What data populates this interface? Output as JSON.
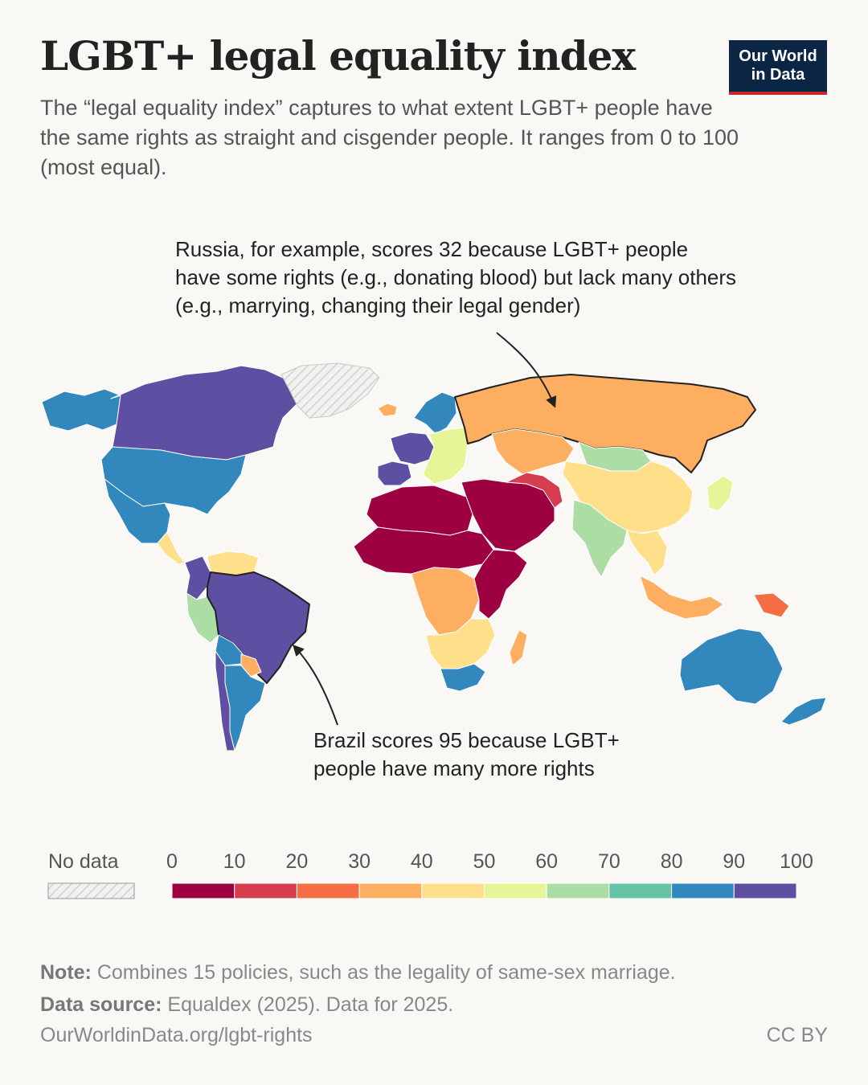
{
  "title": "LGBT+ legal equality index",
  "subtitle": "The “legal equality index” captures to what extent LGBT+ people have the same rights as straight and cisgender people. It ranges from 0 to 100 (most equal).",
  "logo": {
    "line1": "Our World",
    "line2": "in Data"
  },
  "annotations": {
    "russia": "Russia, for example, scores 32 because LGBT+ people have some rights (e.g., donating blood) but lack many others (e.g., marrying, changing their legal gender)",
    "brazil": "Brazil scores 95 because LGBT+ people have many more rights"
  },
  "legend": {
    "no_data_label": "No data",
    "ticks": [
      "0",
      "10",
      "20",
      "30",
      "40",
      "50",
      "60",
      "70",
      "80",
      "90",
      "100"
    ],
    "bins": [
      {
        "from": 0,
        "to": 10,
        "color": "#9e0142"
      },
      {
        "from": 10,
        "to": 20,
        "color": "#d53e4f"
      },
      {
        "from": 20,
        "to": 30,
        "color": "#f46d43"
      },
      {
        "from": 30,
        "to": 40,
        "color": "#fdae61"
      },
      {
        "from": 40,
        "to": 50,
        "color": "#fee08b"
      },
      {
        "from": 50,
        "to": 60,
        "color": "#e6f598"
      },
      {
        "from": 60,
        "to": 70,
        "color": "#abdda4"
      },
      {
        "from": 70,
        "to": 80,
        "color": "#66c2a5"
      },
      {
        "from": 80,
        "to": 90,
        "color": "#3288bd"
      },
      {
        "from": 90,
        "to": 100,
        "color": "#5e4fa2"
      }
    ]
  },
  "regions": [
    {
      "name": "Alaska",
      "value": 85
    },
    {
      "name": "Canada",
      "value": 95
    },
    {
      "name": "United States",
      "value": 85
    },
    {
      "name": "Mexico",
      "value": 85
    },
    {
      "name": "Central America",
      "value": 45
    },
    {
      "name": "Colombia",
      "value": 95
    },
    {
      "name": "Venezuela",
      "value": 45
    },
    {
      "name": "Peru",
      "value": 65
    },
    {
      "name": "Brazil",
      "value": 95
    },
    {
      "name": "Bolivia",
      "value": 85
    },
    {
      "name": "Paraguay",
      "value": 35
    },
    {
      "name": "Argentina",
      "value": 85
    },
    {
      "name": "Chile",
      "value": 95
    },
    {
      "name": "Greenland",
      "value": null
    },
    {
      "name": "Iceland",
      "value": 35
    },
    {
      "name": "Scandinavia",
      "value": 85
    },
    {
      "name": "Western Europe",
      "value": 95
    },
    {
      "name": "Iberia",
      "value": 95
    },
    {
      "name": "Eastern Europe",
      "value": 55
    },
    {
      "name": "Russia",
      "value": 32
    },
    {
      "name": "Kazakhstan",
      "value": 35
    },
    {
      "name": "Mongolia",
      "value": 65
    },
    {
      "name": "China",
      "value": 45
    },
    {
      "name": "Japan",
      "value": 55
    },
    {
      "name": "Middle East",
      "value": 5
    },
    {
      "name": "Iran",
      "value": 15
    },
    {
      "name": "India",
      "value": 65
    },
    {
      "name": "Southeast Asia",
      "value": 45
    },
    {
      "name": "North Africa",
      "value": 5
    },
    {
      "name": "Sahel",
      "value": 5
    },
    {
      "name": "Central Africa",
      "value": 35
    },
    {
      "name": "East Africa",
      "value": 5
    },
    {
      "name": "Southern Africa",
      "value": 45
    },
    {
      "name": "South Africa",
      "value": 85
    },
    {
      "name": "Madagascar",
      "value": 35
    },
    {
      "name": "Indonesia",
      "value": 35
    },
    {
      "name": "Papua New Guinea",
      "value": 25
    },
    {
      "name": "Australia",
      "value": 85
    },
    {
      "name": "New Zealand",
      "value": 85
    }
  ],
  "footer": {
    "note_label": "Note:",
    "note": " Combines 15 policies, such as the legality of same-sex marriage.",
    "source_label": "Data source:",
    "source": " Equaldex (2025). Data for 2025.",
    "url": "OurWorldinData.org/lgbt-rights",
    "license": "CC BY"
  }
}
